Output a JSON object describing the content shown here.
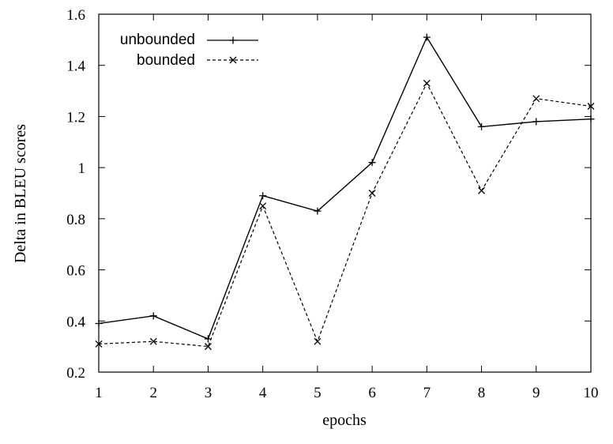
{
  "chart_data": {
    "type": "line",
    "x": [
      1,
      2,
      3,
      4,
      5,
      6,
      7,
      8,
      9,
      10
    ],
    "xlabel": "epochs",
    "ylabel": "Delta in BLEU scores",
    "xlim": [
      1,
      10
    ],
    "ylim": [
      0.2,
      1.6
    ],
    "xticks": [
      "1",
      "2",
      "3",
      "4",
      "5",
      "6",
      "7",
      "8",
      "9",
      "10"
    ],
    "yticks": [
      "0.2",
      "0.4",
      "0.6",
      "0.8",
      "1",
      "1.2",
      "1.4",
      "1.6"
    ],
    "grid": false,
    "legend_position": "top-left",
    "series": [
      {
        "name": "unbounded",
        "values": [
          0.39,
          0.42,
          0.33,
          0.89,
          0.83,
          1.02,
          1.51,
          1.16,
          1.18,
          1.19
        ],
        "marker": "plus",
        "dash": "solid",
        "color": "#000000"
      },
      {
        "name": "bounded",
        "values": [
          0.31,
          0.32,
          0.3,
          0.85,
          0.32,
          0.9,
          1.33,
          0.91,
          1.27,
          1.24
        ],
        "marker": "cross",
        "dash": "dashed",
        "color": "#000000"
      }
    ]
  }
}
